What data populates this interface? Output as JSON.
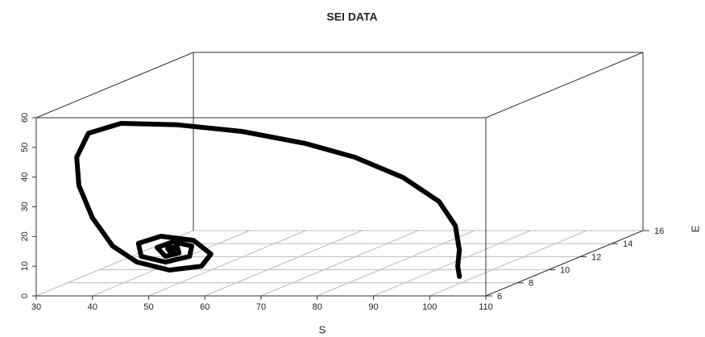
{
  "chart_data": {
    "type": "scatter3d",
    "title": "SEI DATA",
    "xlabel": "S",
    "ylabel": "E",
    "x": [
      102.5,
      99.4,
      96.9,
      92.0,
      84.9,
      78.5,
      72.7,
      66.8,
      58.2,
      49.5,
      40.9,
      35.1,
      31.6,
      30.6,
      31.6,
      35.2,
      39.5,
      46.7,
      51.0,
      51.3,
      46.8,
      41.0,
      38.4,
      40.3,
      44.6,
      47.5,
      47.9,
      44.6,
      41.7,
      43.2,
      45.6,
      45.3,
      43.6,
      44.2,
      44.6
    ],
    "y": [
      7,
      8,
      9,
      10.5,
      12,
      12,
      11,
      10,
      9,
      8,
      7.5,
      7.5,
      8,
      8.5,
      9,
      9,
      9,
      8.5,
      9,
      9.5,
      10,
      10,
      9.5,
      9,
      9,
      9.5,
      9.5,
      9.5,
      9.5,
      9.5,
      9.5,
      9.5,
      9.5,
      9.5,
      9.5
    ],
    "z": [
      4.3,
      5.6,
      8.9,
      13.7,
      18.6,
      26.7,
      35.7,
      42.5,
      48.8,
      53.2,
      54.8,
      51.5,
      42.3,
      31.7,
      19.7,
      10.2,
      4.8,
      3.2,
      3.4,
      6.4,
      9.9,
      11.3,
      10.0,
      6.7,
      4.8,
      5.6,
      9.1,
      10.5,
      8.6,
      5.6,
      6.7,
      8.9,
      8.3,
      6.7,
      7.5
    ],
    "color": "#000000",
    "xlim": [
      30,
      110
    ],
    "xticks": [
      30,
      40,
      50,
      60,
      70,
      80,
      90,
      100,
      110
    ],
    "ylim": [
      6,
      16
    ],
    "yticks": [
      6,
      8,
      10,
      12,
      14,
      16
    ],
    "zlim": [
      0,
      60
    ],
    "zticks": [
      0,
      10,
      20,
      30,
      40,
      50,
      60
    ],
    "grid": true
  }
}
